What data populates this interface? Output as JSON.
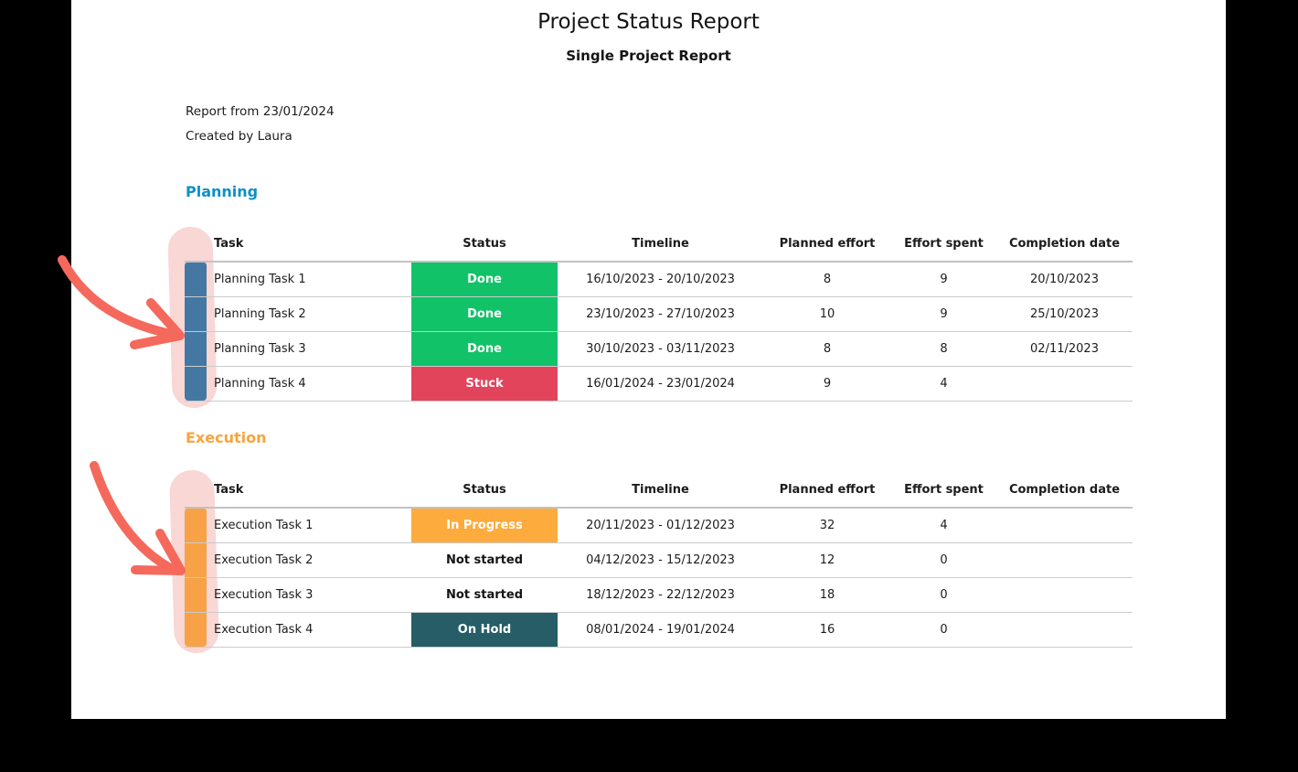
{
  "doc": {
    "title": "Project Status Report",
    "subtitle": "Single Project Report",
    "meta": {
      "report_from": "Report from 23/01/2024",
      "created_by": "Created by Laura"
    }
  },
  "table_headers": [
    "Task",
    "Status",
    "Timeline",
    "Planned effort",
    "Effort spent",
    "Completion date"
  ],
  "sections": [
    {
      "name": "Planning",
      "color": "#0e8fc9",
      "bar_color": "#4478a3",
      "rows": [
        {
          "task": "Planning Task 1",
          "status": "Done",
          "status_key": "done",
          "timeline": "16/10/2023 - 20/10/2023",
          "planned_effort": "8",
          "effort_spent": "9",
          "completion_date": "20/10/2023"
        },
        {
          "task": "Planning Task 2",
          "status": "Done",
          "status_key": "done",
          "timeline": "23/10/2023 - 27/10/2023",
          "planned_effort": "10",
          "effort_spent": "9",
          "completion_date": "25/10/2023"
        },
        {
          "task": "Planning Task 3",
          "status": "Done",
          "status_key": "done",
          "timeline": "30/10/2023 - 03/11/2023",
          "planned_effort": "8",
          "effort_spent": "8",
          "completion_date": "02/11/2023"
        },
        {
          "task": "Planning Task 4",
          "status": "Stuck",
          "status_key": "stuck",
          "timeline": "16/01/2024 - 23/01/2024",
          "planned_effort": "9",
          "effort_spent": "4",
          "completion_date": ""
        }
      ]
    },
    {
      "name": "Execution",
      "color": "#f9a33c",
      "bar_color": "#f7a246",
      "rows": [
        {
          "task": "Execution Task 1",
          "status": "In Progress",
          "status_key": "in_progress",
          "timeline": "20/11/2023 - 01/12/2023",
          "planned_effort": "32",
          "effort_spent": "4",
          "completion_date": ""
        },
        {
          "task": "Execution Task 2",
          "status": "Not started",
          "status_key": "not_started",
          "timeline": "04/12/2023 - 15/12/2023",
          "planned_effort": "12",
          "effort_spent": "0",
          "completion_date": ""
        },
        {
          "task": "Execution Task 3",
          "status": "Not started",
          "status_key": "not_started",
          "timeline": "18/12/2023 - 22/12/2023",
          "planned_effort": "18",
          "effort_spent": "0",
          "completion_date": ""
        },
        {
          "task": "Execution Task 4",
          "status": "On Hold",
          "status_key": "on_hold",
          "timeline": "08/01/2024 - 19/01/2024",
          "planned_effort": "16",
          "effort_spent": "0",
          "completion_date": ""
        }
      ]
    }
  ],
  "status_styles": {
    "done": {
      "bg": "#12c268",
      "fg": "#ffffff"
    },
    "stuck": {
      "bg": "#e2445c",
      "fg": "#ffffff"
    },
    "in_progress": {
      "bg": "#fdab3d",
      "fg": "#ffffff"
    },
    "not_started": {
      "bg": "",
      "fg": "#141414"
    },
    "on_hold": {
      "bg": "#265d66",
      "fg": "#ffffff"
    }
  },
  "annotations": {
    "arrow_color": "#f4695c",
    "highlight_color": "#f8d7d5"
  }
}
